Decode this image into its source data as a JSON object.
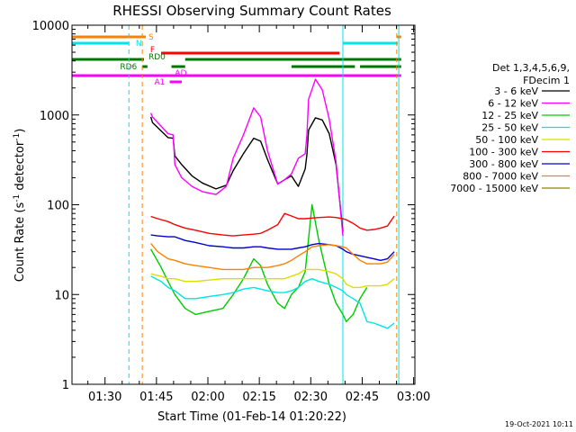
{
  "chart_data": {
    "type": "line",
    "title": "RHESSI Observing Summary Count Rates",
    "xlabel": "Start Time (01-Feb-14 01:20:22)",
    "ylabel_main": "Count Rate (s",
    "ylabel_sup1": "-1",
    "ylabel_mid": " detector",
    "ylabel_sup2": "-1",
    "ylabel_end": ")",
    "x_unit": "minutes after 01:20:22",
    "xlim": [
      0,
      100
    ],
    "ylim": [
      1,
      10000
    ],
    "yscale": "log",
    "x_ticks": [
      {
        "label": "01:30",
        "value": 9.63
      },
      {
        "label": "01:45",
        "value": 24.63
      },
      {
        "label": "02:00",
        "value": 39.63
      },
      {
        "label": "02:15",
        "value": 54.63
      },
      {
        "label": "02:30",
        "value": 69.63
      },
      {
        "label": "02:45",
        "value": 84.63
      },
      {
        "label": "03:00",
        "value": 99.63
      }
    ],
    "y_ticks": [
      {
        "label": "1",
        "value": 1
      },
      {
        "label": "10",
        "value": 10
      },
      {
        "label": "100",
        "value": 100
      },
      {
        "label": "1000",
        "value": 1000
      },
      {
        "label": "10000",
        "value": 10000
      }
    ],
    "legend_header": [
      "Det 1,3,4,5,6,9,",
      "FDecim 1"
    ],
    "legend_position": "right",
    "series": [
      {
        "name": "3 - 6 keV",
        "color": "#000000",
        "x": [
          23,
          23.5,
          28,
          29.5,
          30,
          32,
          35,
          38,
          42,
          45,
          47,
          50,
          53,
          55,
          57,
          60,
          62,
          64,
          66,
          68,
          68.5,
          69,
          71,
          73,
          75,
          77,
          79
        ],
        "y": [
          950,
          820,
          560,
          550,
          350,
          280,
          210,
          175,
          150,
          165,
          240,
          370,
          550,
          510,
          320,
          170,
          190,
          210,
          160,
          250,
          360,
          680,
          930,
          880,
          620,
          280,
          50
        ]
      },
      {
        "name": "6 - 12 keV",
        "color": "#ff00ff",
        "x": [
          23,
          23.5,
          28,
          29.5,
          30,
          32,
          35,
          38,
          42,
          45,
          47,
          50,
          53,
          55,
          57,
          60,
          62,
          64,
          66,
          68,
          68.5,
          69,
          71,
          73,
          75,
          77,
          79
        ],
        "y": [
          1050,
          950,
          620,
          600,
          280,
          200,
          160,
          140,
          130,
          160,
          330,
          600,
          1200,
          950,
          400,
          170,
          190,
          220,
          330,
          370,
          600,
          1500,
          2500,
          1900,
          900,
          300,
          45
        ]
      },
      {
        "name": "12 - 25 keV",
        "color": "#00cc00",
        "x": [
          23,
          26,
          28,
          30,
          33,
          36,
          40,
          44,
          47,
          50,
          53,
          55,
          57,
          60,
          62,
          64,
          66,
          68,
          70,
          72,
          75,
          77,
          79,
          80,
          82,
          84,
          86
        ],
        "y": [
          32,
          20,
          14,
          10,
          7,
          6,
          6.5,
          7,
          10,
          15,
          25,
          21,
          13,
          8,
          7,
          10,
          12,
          18,
          100,
          40,
          13,
          8,
          6,
          5,
          6,
          9,
          12
        ]
      },
      {
        "name": "25 - 50 keV",
        "color": "#00e5e5",
        "x": [
          23,
          26,
          28,
          30,
          33,
          36,
          40,
          44,
          47,
          50,
          53,
          55,
          57,
          60,
          62,
          64,
          66,
          68,
          70,
          72,
          75,
          77,
          79,
          80,
          82,
          84,
          86,
          88,
          90,
          92,
          94
        ],
        "y": [
          16,
          14,
          12,
          11,
          9,
          9,
          9.5,
          10,
          10.5,
          11.5,
          12,
          11.5,
          11,
          10.5,
          10.5,
          11,
          12,
          14,
          15,
          14,
          13,
          12,
          11,
          10,
          9,
          8,
          5,
          4.8,
          4.5,
          4.2,
          4.8
        ]
      },
      {
        "name": "50 - 100 keV",
        "color": "#dddd00",
        "x": [
          23,
          26,
          28,
          30,
          33,
          36,
          40,
          44,
          47,
          50,
          53,
          55,
          57,
          60,
          62,
          64,
          66,
          68,
          70,
          72,
          75,
          77,
          79,
          80,
          82,
          84,
          86,
          88,
          90,
          92,
          94
        ],
        "y": [
          17,
          16,
          15,
          15,
          14,
          14,
          14.5,
          15,
          15,
          15,
          15,
          15,
          15,
          15,
          15,
          16,
          17,
          19,
          19,
          19,
          18,
          17,
          15,
          13,
          12,
          12,
          12.5,
          12.5,
          12.5,
          13,
          15
        ]
      },
      {
        "name": "100 - 300 keV",
        "color": "#ff0000",
        "x": [
          23,
          25,
          28,
          30,
          33,
          36,
          40,
          44,
          47,
          50,
          53,
          55,
          57,
          60,
          62,
          64,
          66,
          68,
          70,
          72,
          75,
          77,
          79,
          80,
          82,
          84,
          86,
          88,
          90,
          92,
          94
        ],
        "y": [
          74,
          70,
          65,
          60,
          55,
          52,
          48,
          46,
          45,
          46,
          47,
          48,
          52,
          60,
          80,
          75,
          70,
          70,
          71,
          72,
          73,
          72,
          70,
          68,
          62,
          55,
          52,
          53,
          55,
          58,
          75
        ]
      },
      {
        "name": "300 - 800 keV",
        "color": "#0000cc",
        "x": [
          23,
          25,
          28,
          30,
          33,
          36,
          40,
          44,
          47,
          50,
          53,
          55,
          57,
          60,
          62,
          64,
          66,
          68,
          70,
          72,
          75,
          77,
          79,
          80,
          82,
          84,
          86,
          88,
          90,
          92,
          94
        ],
        "y": [
          46,
          45,
          44,
          44,
          40,
          38,
          35,
          34,
          33,
          33,
          34,
          34,
          33,
          32,
          32,
          32,
          33,
          34,
          36,
          37,
          36,
          35,
          32,
          30,
          28,
          27,
          26,
          25,
          24,
          25,
          30
        ]
      },
      {
        "name": "800 - 7000 keV",
        "color": "#ff8000",
        "x": [
          23,
          25,
          28,
          30,
          33,
          36,
          40,
          44,
          47,
          50,
          53,
          55,
          57,
          60,
          62,
          64,
          66,
          68,
          70,
          72,
          75,
          77,
          79,
          80,
          82,
          84,
          86,
          88,
          90,
          92,
          94
        ],
        "y": [
          37,
          30,
          25,
          24,
          22,
          21,
          20,
          19,
          19,
          19,
          20,
          20,
          20,
          21,
          22,
          24,
          27,
          30,
          34,
          35,
          36,
          35,
          34,
          33,
          28,
          24,
          22,
          22,
          22,
          23,
          28
        ]
      },
      {
        "name": "7000 - 15000 keV",
        "color": "#888800",
        "x": [],
        "y": []
      }
    ],
    "time_markers": [
      {
        "x": 0,
        "color": "#00e5e5",
        "style": "solid"
      },
      {
        "x": 16.6,
        "color": "#00e5e5",
        "style": "dashed"
      },
      {
        "x": 20.5,
        "color": "#ff8000",
        "style": "dashed"
      },
      {
        "x": 79,
        "color": "#00e5e5",
        "style": "solid"
      },
      {
        "x": 94.7,
        "color": "#ff8000",
        "style": "dashed"
      },
      {
        "x": 95.3,
        "color": "#00e5e5",
        "style": "solid"
      }
    ],
    "flags": [
      {
        "name": "S",
        "color": "#ff8000",
        "segments": [
          [
            0,
            21.5
          ],
          [
            94.7,
            96
          ]
        ],
        "label_x": 22.3
      },
      {
        "name": "N",
        "color": "#00e5e5",
        "segments": [
          [
            0,
            16.6
          ],
          [
            79,
            95
          ]
        ],
        "label_x": 18.6
      },
      {
        "name": "F",
        "color": "#ff0000",
        "segments": [
          [
            26,
            78
          ]
        ],
        "label_x": 22.8
      },
      {
        "name": "RD0",
        "color": "#007700",
        "segments": [
          [
            0,
            21
          ],
          [
            33,
            96
          ]
        ],
        "label_x": 22.3
      },
      {
        "name": "RD6",
        "color": "#007700",
        "segments": [
          [
            20.5,
            22
          ],
          [
            29,
            33
          ],
          [
            64,
            82.5
          ],
          [
            84,
            96
          ]
        ],
        "label_x": 14.0
      },
      {
        "name": "AD",
        "color": "#ff00ff",
        "segments": [
          [
            0,
            96
          ]
        ],
        "label_x": 30.0
      },
      {
        "name": "A1",
        "color": "#ff00ff",
        "segments": [
          [
            28.5,
            32
          ]
        ],
        "label_x": 24.0
      }
    ]
  },
  "footer": {
    "date": "19-Oct-2021 10:11"
  }
}
